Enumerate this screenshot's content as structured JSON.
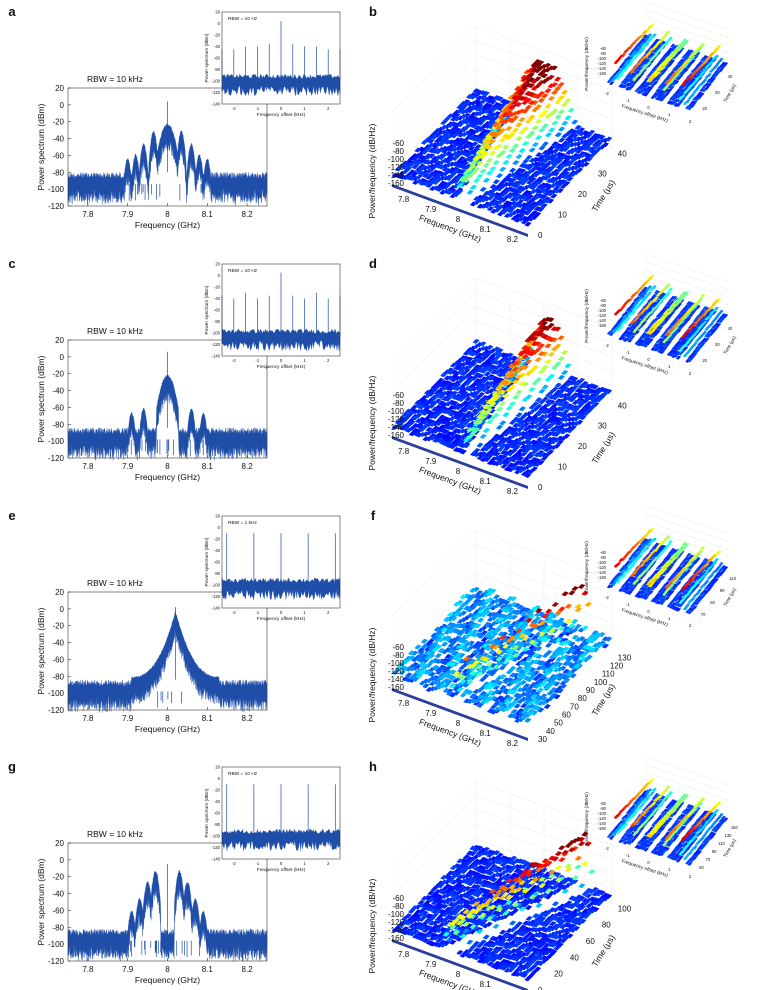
{
  "chart_data": [
    {
      "panel": "a",
      "type": "line",
      "xlabel": "Frequency (GHz)",
      "ylabel": "Power spectrum (dBm)",
      "xticks": [
        "7.8",
        "7.9",
        "8",
        "8.1",
        "8.2"
      ],
      "yticks": [
        "20",
        "0",
        "-20",
        "-40",
        "-60",
        "-80",
        "-100",
        "-120"
      ],
      "xlim": [
        7.75,
        8.25
      ],
      "ylim": [
        -120,
        20
      ],
      "annotation": "RBW = 10 kHz",
      "peak": {
        "x": 8.0,
        "y": 4
      },
      "lobes": [
        {
          "x": 8.0,
          "y": -22
        },
        {
          "x": 7.965,
          "y": -30
        },
        {
          "x": 8.035,
          "y": -30
        },
        {
          "x": 7.94,
          "y": -45
        },
        {
          "x": 8.06,
          "y": -45
        },
        {
          "x": 7.92,
          "y": -58
        },
        {
          "x": 8.08,
          "y": -58
        },
        {
          "x": 7.9,
          "y": -63
        },
        {
          "x": 8.1,
          "y": -63
        }
      ],
      "noise_floor": -80,
      "inset": {
        "xlabel": "Frequency offset (kHz)",
        "ylabel": "Power spectrum (dBm)",
        "annotation": "RBW = 10 Hz",
        "xticks": [
          "-2",
          "-1",
          "0",
          "1",
          "2"
        ],
        "yticks": [
          "20",
          "0",
          "-20",
          "-40",
          "-60",
          "-80",
          "-100",
          "-120",
          "-140"
        ],
        "xlim": [
          -2.5,
          2.5
        ],
        "ylim": [
          -140,
          20
        ],
        "spikes": [
          {
            "x": -2.5,
            "y": -45
          },
          {
            "x": -2.0,
            "y": -45
          },
          {
            "x": -1.5,
            "y": -40
          },
          {
            "x": -1.0,
            "y": -40
          },
          {
            "x": -0.5,
            "y": -35
          },
          {
            "x": 0.0,
            "y": 4
          },
          {
            "x": 0.5,
            "y": -35
          },
          {
            "x": 1.0,
            "y": -40
          },
          {
            "x": 1.5,
            "y": -40
          },
          {
            "x": 2.0,
            "y": -45
          },
          {
            "x": 2.5,
            "y": -45
          }
        ],
        "floor": -100
      }
    },
    {
      "panel": "b",
      "type": "surface3d",
      "xlabel": "Frequency (GHz)",
      "ylabel": "Time (μs)",
      "zlabel": "Power/frequency (dB/Hz)",
      "xticks": [
        "7.8",
        "7.9",
        "8",
        "8.1",
        "8.2"
      ],
      "yticks": [
        "0",
        "10",
        "20",
        "30",
        "40"
      ],
      "zticks": [
        "-60",
        "-80",
        "-100",
        "-120",
        "-140",
        "-160"
      ],
      "inset": {
        "xlabel": "Frequency offset (kHz)",
        "ylabel": "Time (μs)",
        "zlabel": "Power/frequency (dB/Hz)",
        "xticks": [
          "-2",
          "-1",
          "0",
          "1",
          "2"
        ],
        "yticks": [
          "20",
          "30",
          "40"
        ],
        "zticks": [
          "-60",
          "-80",
          "-100",
          "-120",
          "-140",
          "-160"
        ]
      }
    },
    {
      "panel": "c",
      "type": "line",
      "xlabel": "Frequency (GHz)",
      "ylabel": "Power spectrum (dBm)",
      "xticks": [
        "7.8",
        "7.9",
        "8",
        "8.1",
        "8.2"
      ],
      "yticks": [
        "20",
        "0",
        "-20",
        "-40",
        "-60",
        "-80",
        "-100",
        "-120"
      ],
      "xlim": [
        7.75,
        8.25
      ],
      "ylim": [
        -120,
        20
      ],
      "annotation": "RBW = 10 kHz",
      "peak": {
        "x": 8.0,
        "y": 6
      },
      "lobes": [
        {
          "x": 8.0,
          "y": -21
        },
        {
          "x": 7.94,
          "y": -60
        },
        {
          "x": 8.06,
          "y": -60
        },
        {
          "x": 7.91,
          "y": -65
        },
        {
          "x": 8.09,
          "y": -65
        }
      ],
      "noise_floor": -84,
      "inset": {
        "xlabel": "Frequency offset (kHz)",
        "ylabel": "Power spectrum (dBm)",
        "annotation": "RBW = 10 Hz",
        "xticks": [
          "-2",
          "-1",
          "0",
          "1",
          "2"
        ],
        "yticks": [
          "20",
          "0",
          "-20",
          "-40",
          "-60",
          "-80",
          "-100",
          "-120",
          "-140"
        ],
        "xlim": [
          -2.5,
          2.5
        ],
        "ylim": [
          -140,
          20
        ],
        "spikes": [
          {
            "x": -2.5,
            "y": -35
          },
          {
            "x": -2.0,
            "y": -40
          },
          {
            "x": -1.5,
            "y": -30
          },
          {
            "x": -1.0,
            "y": -40
          },
          {
            "x": -0.5,
            "y": -35
          },
          {
            "x": 0.0,
            "y": 5
          },
          {
            "x": 0.5,
            "y": -35
          },
          {
            "x": 1.0,
            "y": -40
          },
          {
            "x": 1.5,
            "y": -30
          },
          {
            "x": 2.0,
            "y": -40
          },
          {
            "x": 2.5,
            "y": -35
          }
        ],
        "floor": -105
      }
    },
    {
      "panel": "d",
      "type": "surface3d",
      "xlabel": "Frequency (GHz)",
      "ylabel": "Time (μs)",
      "zlabel": "Power/frequency (dB/Hz)",
      "xticks": [
        "7.8",
        "7.9",
        "8",
        "8.1",
        "8.2"
      ],
      "yticks": [
        "0",
        "10",
        "20",
        "30",
        "40"
      ],
      "zticks": [
        "-60",
        "-80",
        "-100",
        "-120",
        "-140",
        "-160"
      ],
      "inset": {
        "xlabel": "Frequency offset (kHz)",
        "ylabel": "Time (μs)",
        "zlabel": "Power/frequency (dB/Hz)",
        "xticks": [
          "-2",
          "-1",
          "0",
          "1",
          "2"
        ],
        "yticks": [
          "20",
          "30",
          "40"
        ],
        "zticks": [
          "-60",
          "-80",
          "-100",
          "-120",
          "-140",
          "-160"
        ]
      }
    },
    {
      "panel": "e",
      "type": "line",
      "xlabel": "Frequency (GHz)",
      "ylabel": "Power spectrum (dBm)",
      "xticks": [
        "7.8",
        "7.9",
        "8",
        "8.1",
        "8.2"
      ],
      "yticks": [
        "20",
        "0",
        "-20",
        "-40",
        "-60",
        "-80",
        "-100",
        "-120"
      ],
      "xlim": [
        7.75,
        8.25
      ],
      "ylim": [
        -120,
        20
      ],
      "annotation": "RBW = 10 kHz",
      "peak": {
        "x": 8.02,
        "y": 2
      },
      "lobes": [],
      "noise_floor": -84,
      "inset": {
        "xlabel": "Frequency offset (kHz)",
        "ylabel": "Power spectrum (dBm)",
        "annotation": "RBW = 1 kHz",
        "xticks": [
          "-2",
          "-1",
          "0",
          "1",
          "2"
        ],
        "yticks": [
          "20",
          "0",
          "-20",
          "-40",
          "-60",
          "-80",
          "-100",
          "-120",
          "-140"
        ],
        "xlim": [
          -2.5,
          2.5
        ],
        "ylim": [
          -140,
          20
        ],
        "spikes": [
          {
            "x": -2.3,
            "y": -10
          },
          {
            "x": -1.15,
            "y": -10
          },
          {
            "x": 0.0,
            "y": -10
          },
          {
            "x": 1.15,
            "y": -10
          },
          {
            "x": 2.3,
            "y": -10
          }
        ],
        "floor": -100
      }
    },
    {
      "panel": "f",
      "type": "surface3d",
      "xlabel": "Frequency (GHz)",
      "ylabel": "Time (μs)",
      "zlabel": "Power/frequency (dB/Hz)",
      "xticks": [
        "7.8",
        "7.9",
        "8",
        "8.1",
        "8.2"
      ],
      "yticks": [
        "30",
        "40",
        "50",
        "60",
        "70",
        "80",
        "90",
        "100",
        "110",
        "120",
        "130"
      ],
      "zticks": [
        "-60",
        "-80",
        "-100",
        "-120",
        "-140",
        "-160"
      ],
      "inset": {
        "xlabel": "Frequency offset (kHz)",
        "ylabel": "Time (μs)",
        "zlabel": "Power/frequency (dB/Hz)",
        "xticks": [
          "-2",
          "-1",
          "0",
          "1",
          "2"
        ],
        "yticks": [
          "70",
          "80",
          "90",
          "110"
        ],
        "zticks": [
          "-60",
          "-80",
          "-100",
          "-120",
          "-140",
          "-160"
        ]
      }
    },
    {
      "panel": "g",
      "type": "line",
      "xlabel": "Frequency (GHz)",
      "ylabel": "Power spectrum (dBm)",
      "xticks": [
        "7.8",
        "7.9",
        "8",
        "8.1",
        "8.2"
      ],
      "yticks": [
        "20",
        "0",
        "-20",
        "-40",
        "-60",
        "-80",
        "-100",
        "-120"
      ],
      "xlim": [
        7.75,
        8.25
      ],
      "ylim": [
        -120,
        20
      ],
      "annotation": "RBW = 10 kHz",
      "peak": {
        "x": 8.0,
        "y": -5
      },
      "lobes": [
        {
          "x": 7.97,
          "y": -12
        },
        {
          "x": 8.03,
          "y": -12
        },
        {
          "x": 7.95,
          "y": -25
        },
        {
          "x": 8.05,
          "y": -25
        },
        {
          "x": 7.93,
          "y": -45
        },
        {
          "x": 8.07,
          "y": -45
        },
        {
          "x": 7.91,
          "y": -60
        },
        {
          "x": 8.09,
          "y": -60
        }
      ],
      "noise_floor": -82,
      "inset": {
        "xlabel": "Frequency offset (kHz)",
        "ylabel": "Power spectrum (dBm)",
        "annotation": "RBW = 10 Hz",
        "xticks": [
          "-2",
          "-1",
          "0",
          "1",
          "2"
        ],
        "yticks": [
          "20",
          "0",
          "-20",
          "-40",
          "-60",
          "-80",
          "-100",
          "-120",
          "-140"
        ],
        "xlim": [
          -2.5,
          2.5
        ],
        "ylim": [
          -140,
          20
        ],
        "spikes": [
          {
            "x": -2.3,
            "y": -10
          },
          {
            "x": -1.15,
            "y": -10
          },
          {
            "x": 0.0,
            "y": -10
          },
          {
            "x": 1.15,
            "y": -10
          },
          {
            "x": 2.3,
            "y": -10
          }
        ],
        "floor": -100
      }
    },
    {
      "panel": "h",
      "type": "surface3d",
      "xlabel": "Frequency (GHz)",
      "ylabel": "Time (μs)",
      "zlabel": "Power/frequency (dB/Hz)",
      "xticks": [
        "7.8",
        "7.9",
        "8",
        "8.1",
        "8.2"
      ],
      "yticks": [
        "0",
        "20",
        "40",
        "60",
        "80",
        "100"
      ],
      "zticks": [
        "-60",
        "-80",
        "-100",
        "-120",
        "-140",
        "-160"
      ],
      "inset": {
        "xlabel": "Frequency offset (kHz)",
        "ylabel": "Time (μs)",
        "zlabel": "Power/frequency (dB/Hz)",
        "xticks": [
          "-2",
          "-1",
          "0",
          "1",
          "2"
        ],
        "yticks": [
          "50",
          "70",
          "90",
          "110",
          "130",
          "150"
        ],
        "zticks": [
          "-60",
          "-80",
          "-100",
          "-120",
          "-140",
          "-160"
        ]
      }
    }
  ]
}
